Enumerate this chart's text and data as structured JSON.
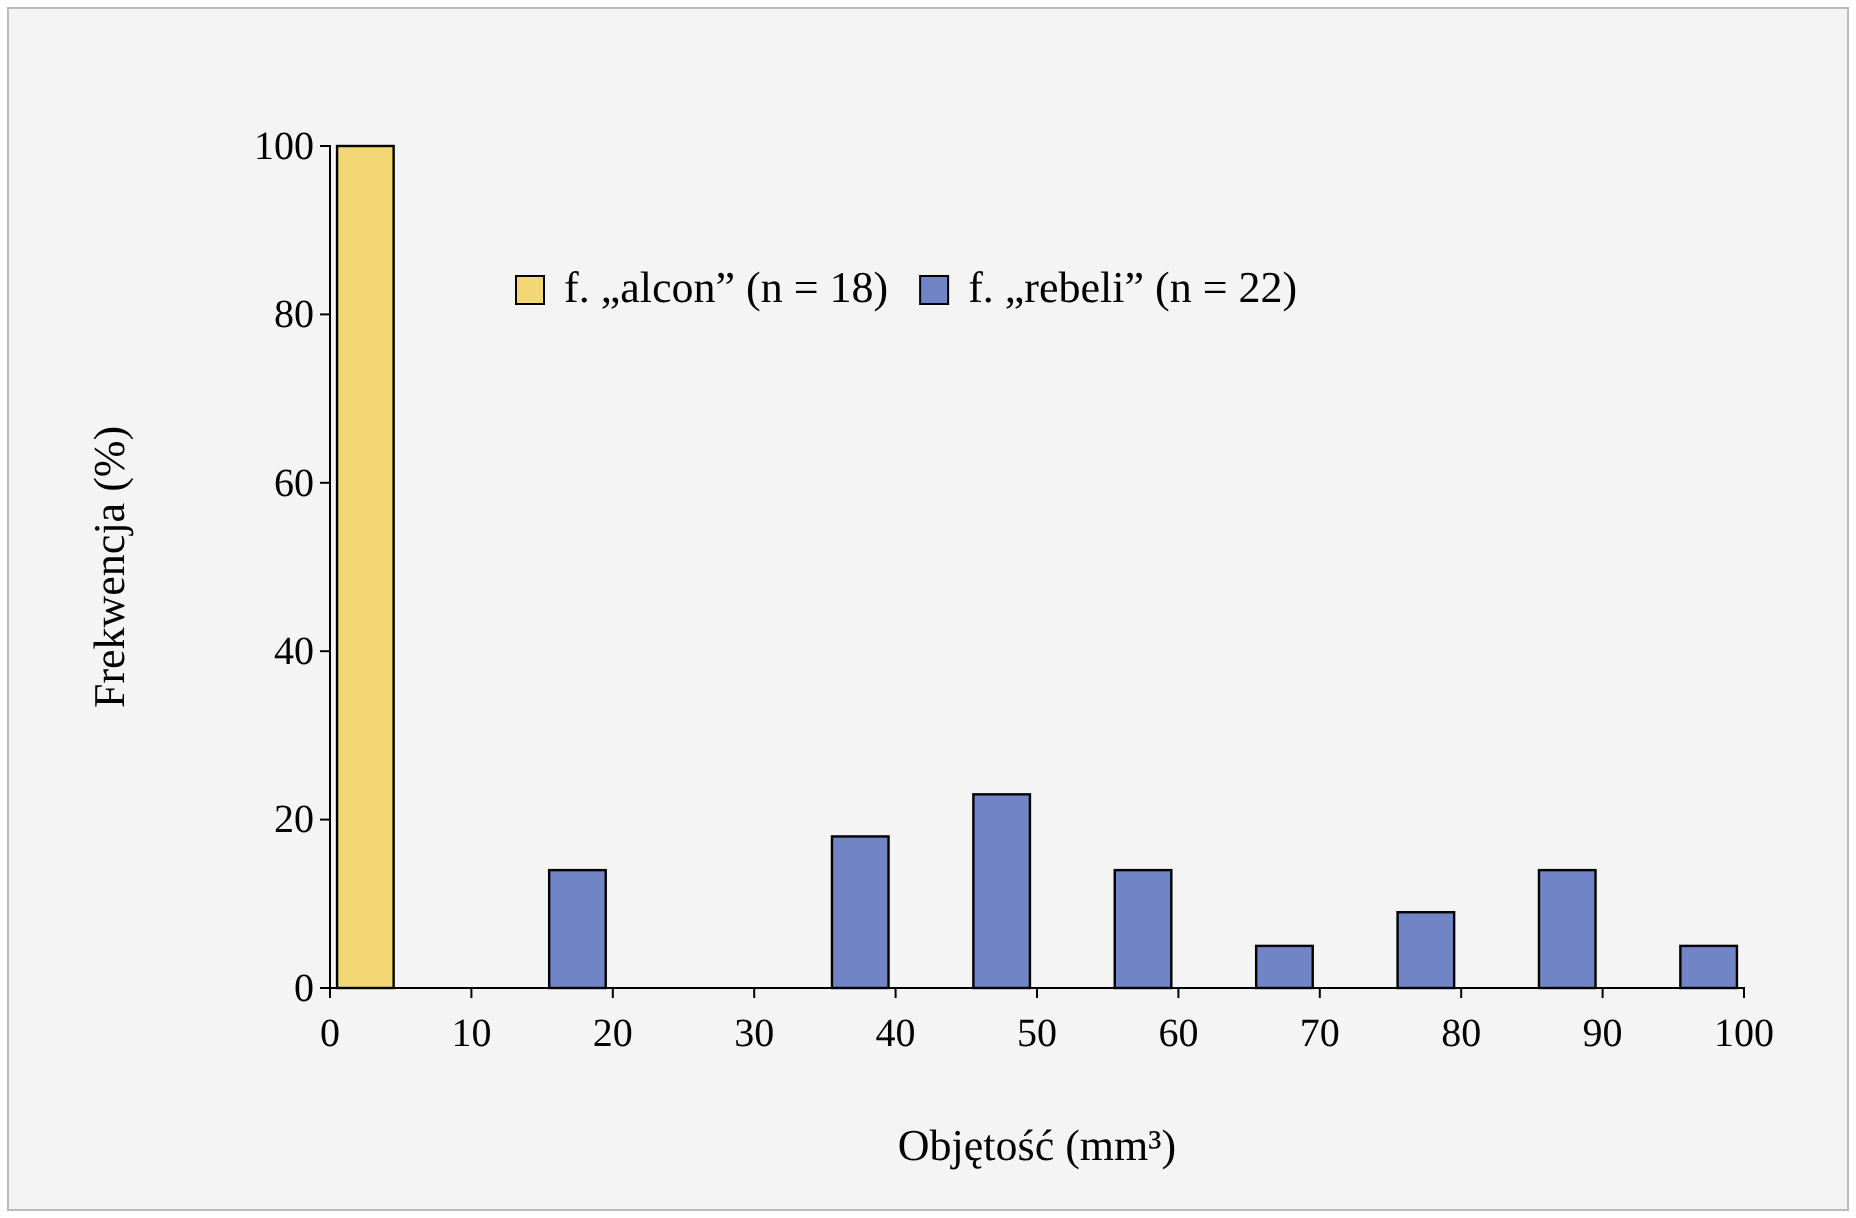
{
  "chart_data": {
    "type": "histogram",
    "xlabel": "Objętość (mm³)",
    "ylabel": "Frekwencja (%)",
    "bins": [
      0,
      10,
      20,
      30,
      40,
      50,
      60,
      70,
      80,
      90,
      100
    ],
    "series": [
      {
        "name": "f. „alcon” (n = 18)",
        "color": "#f2d774",
        "values": [
          100,
          0,
          0,
          0,
          0,
          0,
          0,
          0,
          0,
          0
        ]
      },
      {
        "name": "f. „rebeli” (n = 22)",
        "color": "#7185c6",
        "values": [
          0,
          14,
          0,
          18,
          23,
          14,
          5,
          9,
          14,
          5
        ]
      }
    ],
    "xlim": [
      0,
      100
    ],
    "xticks": [
      0,
      10,
      20,
      30,
      40,
      50,
      60,
      70,
      80,
      90,
      100
    ],
    "ylim": [
      0,
      100
    ],
    "yticks": [
      0,
      20,
      40,
      60,
      80,
      100
    ],
    "grid": false,
    "legend": "top"
  }
}
